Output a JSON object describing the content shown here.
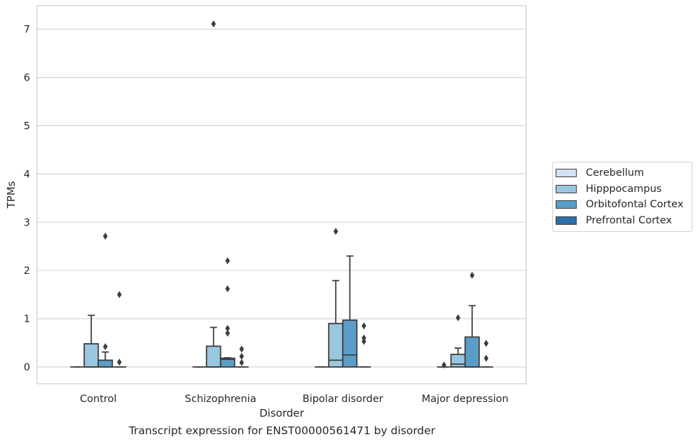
{
  "caption": "Transcript expression for ENST00000561471 by disorder",
  "chart_data": {
    "type": "box",
    "title": "",
    "xlabel": "Disorder",
    "ylabel": "TPMs",
    "ylim": [
      -0.35,
      7.48
    ],
    "yticks": [
      "0",
      "1",
      "2",
      "3",
      "4",
      "5",
      "6",
      "7"
    ],
    "grid": "horizontal",
    "legend_position": "right",
    "categories": [
      "Control",
      "Schizophrenia",
      "Bipolar disorder",
      "Major depression"
    ],
    "series": [
      {
        "name": "Cerebellum",
        "color": "#d1e2f2",
        "boxes": [
          {
            "q1": 0,
            "median": 0,
            "q3": 0,
            "whisker_low": 0,
            "whisker_high": 0,
            "outliers": []
          },
          {
            "q1": 0,
            "median": 0,
            "q3": 0,
            "whisker_low": 0,
            "whisker_high": 0,
            "outliers": []
          },
          {
            "q1": 0,
            "median": 0,
            "q3": 0,
            "whisker_low": 0,
            "whisker_high": 0,
            "outliers": []
          },
          {
            "q1": 0,
            "median": 0,
            "q3": 0,
            "whisker_low": 0,
            "whisker_high": 0,
            "outliers": [
              0.04
            ]
          }
        ]
      },
      {
        "name": "Hipppocampus",
        "color": "#9ac7e0",
        "boxes": [
          {
            "q1": 0,
            "median": 0,
            "q3": 0.48,
            "whisker_low": 0,
            "whisker_high": 1.07,
            "outliers": []
          },
          {
            "q1": 0,
            "median": 0,
            "q3": 0.43,
            "whisker_low": 0,
            "whisker_high": 0.82,
            "outliers": [
              7.11
            ]
          },
          {
            "q1": 0,
            "median": 0.14,
            "q3": 0.9,
            "whisker_low": 0,
            "whisker_high": 1.79,
            "outliers": [
              2.81
            ]
          },
          {
            "q1": 0,
            "median": 0.06,
            "q3": 0.26,
            "whisker_low": 0,
            "whisker_high": 0.39,
            "outliers": [
              1.02
            ]
          }
        ]
      },
      {
        "name": "Orbitofontal Cortex",
        "color": "#5a9dc8",
        "boxes": [
          {
            "q1": 0,
            "median": 0,
            "q3": 0.14,
            "whisker_low": 0,
            "whisker_high": 0.31,
            "outliers": [
              0.42,
              2.71
            ]
          },
          {
            "q1": 0,
            "median": 0.16,
            "q3": 0.18,
            "whisker_low": 0,
            "whisker_high": 0.19,
            "outliers": [
              0.7,
              0.8,
              1.62,
              2.2
            ]
          },
          {
            "q1": 0,
            "median": 0.25,
            "q3": 0.97,
            "whisker_low": 0,
            "whisker_high": 2.3,
            "outliers": []
          },
          {
            "q1": 0,
            "median": 0,
            "q3": 0.62,
            "whisker_low": 0,
            "whisker_high": 1.27,
            "outliers": [
              1.9
            ]
          }
        ]
      },
      {
        "name": "Prefrontal Cortex",
        "color": "#2b6fab",
        "boxes": [
          {
            "q1": 0,
            "median": 0,
            "q3": 0,
            "whisker_low": 0,
            "whisker_high": 0,
            "outliers": [
              0.1,
              1.5
            ]
          },
          {
            "q1": 0,
            "median": 0,
            "q3": 0,
            "whisker_low": 0,
            "whisker_high": 0,
            "outliers": [
              0.09,
              0.22,
              0.37
            ]
          },
          {
            "q1": 0,
            "median": 0,
            "q3": 0,
            "whisker_low": 0,
            "whisker_high": 0,
            "outliers": [
              0.53,
              0.6,
              0.85
            ]
          },
          {
            "q1": 0,
            "median": 0,
            "q3": 0,
            "whisker_low": 0,
            "whisker_high": 0,
            "outliers": [
              0.18,
              0.49
            ]
          }
        ]
      }
    ]
  }
}
